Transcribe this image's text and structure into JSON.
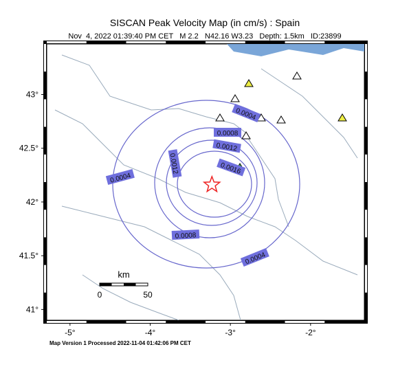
{
  "title": "SISCAN Peak Velocity Map (in cm/s) : Spain",
  "subtitle": "Nov  4, 2022 01:39:40 PM CET   M 2.2   N42.16 W3.23   Depth: 1.5km   ID:23899",
  "footer": "Map Version 1 Processed 2022-11-04 01:42:06 PM CET",
  "map": {
    "lonlim": [
      -5.29,
      -1.33
    ],
    "latlim": [
      40.9,
      43.47
    ],
    "lat_ticks": [
      {
        "value": 43,
        "label": "43°"
      },
      {
        "value": 42.5,
        "label": "42.5°"
      },
      {
        "value": 42,
        "label": "42°"
      },
      {
        "value": 41.5,
        "label": "41.5°"
      },
      {
        "value": 41,
        "label": "41°"
      }
    ],
    "lon_ticks": [
      {
        "value": -5,
        "label": "-5°"
      },
      {
        "value": -4,
        "label": "-4°"
      },
      {
        "value": -3,
        "label": "-3°"
      },
      {
        "value": -2,
        "label": "-2°"
      }
    ],
    "epicenter": {
      "lat": 42.16,
      "lon": -3.23
    },
    "contour_labels": [
      0.0004,
      0.0004,
      0.0004,
      0.0008,
      0.0008,
      0.0012,
      0.0012,
      0.0016
    ],
    "scale_bar": {
      "unit": "km",
      "start": 0,
      "end": 50
    }
  }
}
